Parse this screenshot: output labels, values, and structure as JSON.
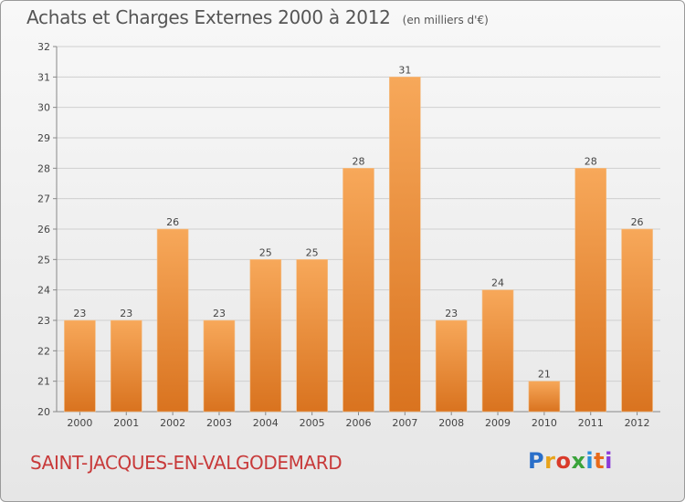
{
  "title": "Achats et Charges Externes 2000 à 2012",
  "unit": "(en milliers d'€)",
  "commune": "SAINT-JACQUES-EN-VALGODEMARD",
  "logo": {
    "letters": [
      "P",
      "r",
      "o",
      "x",
      "i",
      "t",
      "i"
    ]
  },
  "colors": {
    "bar_light": "#f7a85a",
    "bar_dark": "#d9731f",
    "grid": "#cfcfcf",
    "axis": "#888888",
    "text": "#444444"
  },
  "chart_data": {
    "type": "bar",
    "categories": [
      "2000",
      "2001",
      "2002",
      "2003",
      "2004",
      "2005",
      "2006",
      "2007",
      "2008",
      "2009",
      "2010",
      "2011",
      "2012"
    ],
    "values": [
      23,
      23,
      26,
      23,
      25,
      25,
      28,
      31,
      23,
      24,
      21,
      28,
      26
    ],
    "ylim": [
      20,
      32
    ],
    "yticks": [
      20,
      21,
      22,
      23,
      24,
      25,
      26,
      27,
      28,
      29,
      30,
      31,
      32
    ],
    "grid": true,
    "data_labels": true
  }
}
